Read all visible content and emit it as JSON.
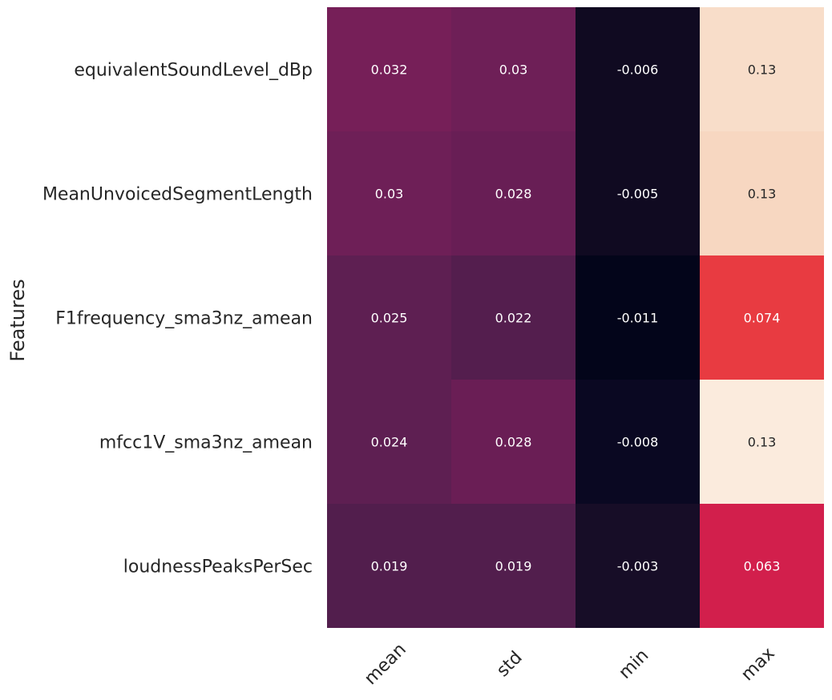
{
  "chart_data": {
    "type": "heatmap",
    "ylabel": "Features",
    "xlabel": "",
    "rows": [
      "equivalentSoundLevel_dBp",
      "MeanUnvoicedSegmentLength",
      "F1frequency_sma3nz_amean",
      "mfcc1V_sma3nz_amean",
      "loudnessPeaksPerSec"
    ],
    "columns": [
      "mean",
      "std",
      "min",
      "max"
    ],
    "values": [
      [
        0.032,
        0.03,
        -0.006,
        0.13
      ],
      [
        0.03,
        0.028,
        -0.005,
        0.13
      ],
      [
        0.025,
        0.022,
        -0.011,
        0.074
      ],
      [
        0.024,
        0.028,
        -0.008,
        0.13
      ],
      [
        0.019,
        0.019,
        -0.003,
        0.063
      ]
    ],
    "cell_labels": [
      [
        "0.032",
        "0.03",
        "-0.006",
        "0.13"
      ],
      [
        "0.03",
        "0.028",
        "-0.005",
        "0.13"
      ],
      [
        "0.025",
        "0.022",
        "-0.011",
        "0.074"
      ],
      [
        "0.024",
        "0.028",
        "-0.008",
        "0.13"
      ],
      [
        "0.019",
        "0.019",
        "-0.003",
        "0.063"
      ]
    ],
    "cell_colors": [
      [
        "#761f58",
        "#6e1f57",
        "#100a21",
        "#f8ddc9"
      ],
      [
        "#6e1f57",
        "#681e55",
        "#100a21",
        "#f7d7c1"
      ],
      [
        "#5e1f52",
        "#541e4e",
        "#03051a",
        "#e83b41"
      ],
      [
        "#5e1f52",
        "#6a1e55",
        "#0a0822",
        "#fbebdd"
      ],
      [
        "#521e4d",
        "#521e4d",
        "#170d27",
        "#d21f4c"
      ]
    ],
    "colormap": "rocket",
    "colorbar": false,
    "grid": false
  }
}
